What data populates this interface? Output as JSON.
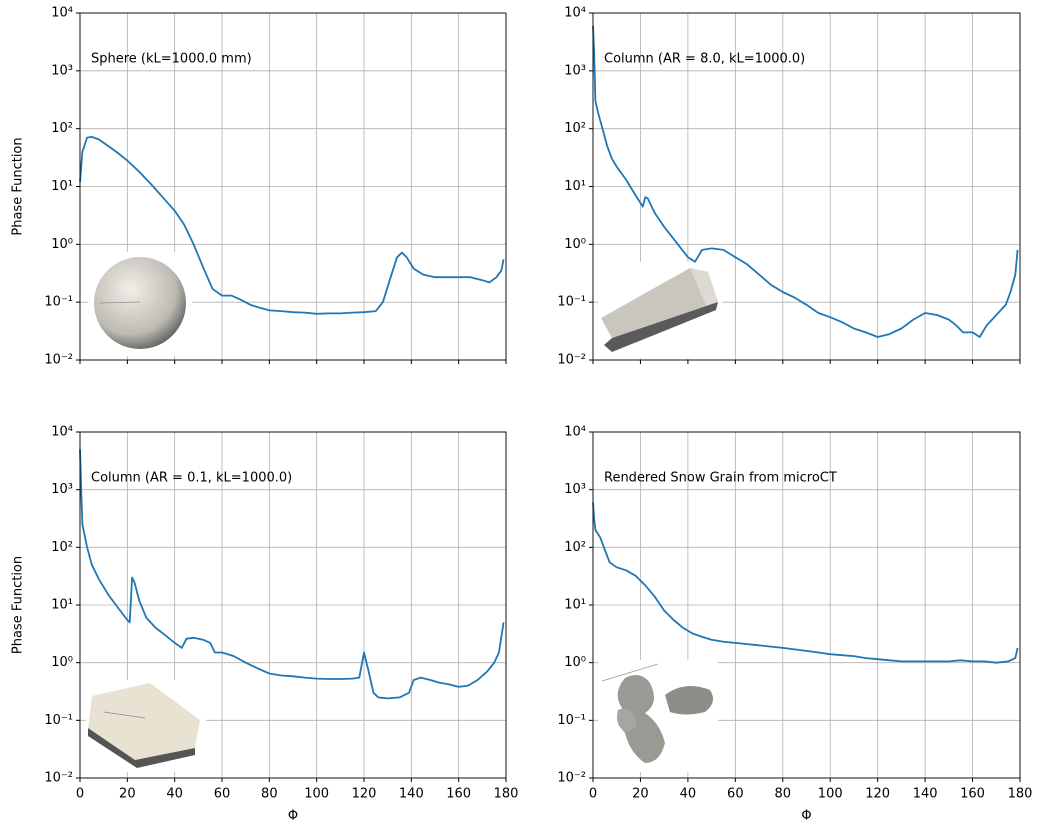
{
  "chart_data": [
    {
      "type": "line",
      "annotation": "Sphere (kL=1000.0 mm)",
      "ylabel": "Phase Function",
      "color": "#1f77b4",
      "x": [
        0,
        1,
        3,
        5,
        8,
        12,
        16,
        20,
        25,
        30,
        35,
        40,
        44,
        48,
        52,
        56,
        60,
        64,
        68,
        72,
        76,
        80,
        85,
        90,
        95,
        100,
        105,
        110,
        115,
        120,
        125,
        128,
        131,
        134,
        136,
        138,
        141,
        145,
        150,
        155,
        160,
        165,
        170,
        173,
        176,
        178,
        179
      ],
      "values": [
        12,
        40,
        70,
        72,
        65,
        50,
        38,
        28,
        18,
        11,
        6.5,
        3.8,
        2.2,
        1.0,
        0.4,
        0.17,
        0.13,
        0.13,
        0.11,
        0.09,
        0.08,
        0.072,
        0.07,
        0.067,
        0.066,
        0.063,
        0.064,
        0.064,
        0.066,
        0.067,
        0.07,
        0.1,
        0.25,
        0.6,
        0.72,
        0.6,
        0.38,
        0.3,
        0.27,
        0.27,
        0.27,
        0.27,
        0.24,
        0.22,
        0.27,
        0.35,
        0.55
      ],
      "xlim": [
        0,
        180
      ],
      "xticks": [
        0,
        20,
        40,
        60,
        80,
        100,
        120,
        140,
        160,
        180
      ],
      "xtick_labels": false,
      "ylim": [
        0.01,
        10000
      ],
      "log_y": true,
      "grid": true,
      "yticks": [
        {
          "value": 0.01,
          "label": "10⁻²"
        },
        {
          "value": 0.1,
          "label": "10⁻¹"
        },
        {
          "value": 1,
          "label": "10⁰"
        },
        {
          "value": 10,
          "label": "10¹"
        },
        {
          "value": 100,
          "label": "10²"
        },
        {
          "value": 1000,
          "label": "10³"
        },
        {
          "value": 10000,
          "label": "10⁴"
        }
      ]
    },
    {
      "type": "line",
      "annotation": "Column (AR = 8.0, kL=1000.0)",
      "color": "#1f77b4",
      "x": [
        0,
        0.5,
        1,
        2,
        4,
        6,
        8,
        10,
        14,
        18,
        21,
        22,
        23,
        26,
        30,
        35,
        40,
        43,
        46,
        50,
        55,
        60,
        65,
        70,
        75,
        80,
        85,
        90,
        95,
        100,
        105,
        110,
        115,
        120,
        125,
        130,
        135,
        140,
        145,
        150,
        153,
        156,
        160,
        163,
        166,
        170,
        174,
        176,
        178,
        179
      ],
      "values": [
        6000,
        2000,
        300,
        200,
        100,
        50,
        30,
        22,
        13,
        7,
        4.5,
        6.5,
        6.3,
        3.5,
        2,
        1.1,
        0.6,
        0.5,
        0.8,
        0.85,
        0.8,
        0.6,
        0.45,
        0.3,
        0.2,
        0.15,
        0.12,
        0.09,
        0.065,
        0.055,
        0.045,
        0.035,
        0.03,
        0.025,
        0.028,
        0.035,
        0.05,
        0.065,
        0.06,
        0.05,
        0.04,
        0.03,
        0.03,
        0.025,
        0.04,
        0.06,
        0.09,
        0.15,
        0.3,
        0.8
      ],
      "xlim": [
        0,
        180
      ],
      "xticks": [
        0,
        20,
        40,
        60,
        80,
        100,
        120,
        140,
        160,
        180
      ],
      "xtick_labels": false,
      "ylim": [
        0.01,
        10000
      ],
      "log_y": true,
      "grid": true,
      "yticks": [
        {
          "value": 0.01,
          "label": "10⁻²"
        },
        {
          "value": 0.1,
          "label": "10⁻¹"
        },
        {
          "value": 1,
          "label": "10⁰"
        },
        {
          "value": 10,
          "label": "10¹"
        },
        {
          "value": 100,
          "label": "10²"
        },
        {
          "value": 1000,
          "label": "10³"
        },
        {
          "value": 10000,
          "label": "10⁴"
        }
      ]
    },
    {
      "type": "line",
      "annotation": "Column (AR = 0.1, kL=1000.0)",
      "ylabel": "Phase Function",
      "xlabel": "Φ",
      "color": "#1f77b4",
      "x": [
        0,
        0.5,
        1,
        3,
        5,
        8,
        12,
        16,
        20,
        21,
        22,
        23,
        25,
        28,
        32,
        36,
        40,
        43,
        45,
        48,
        52,
        55,
        57,
        60,
        65,
        70,
        75,
        80,
        85,
        90,
        95,
        100,
        105,
        110,
        115,
        118,
        120,
        122,
        124,
        126,
        130,
        135,
        139,
        141,
        144,
        148,
        152,
        156,
        160,
        164,
        168,
        172,
        175,
        177,
        179
      ],
      "values": [
        5000,
        1000,
        250,
        100,
        50,
        28,
        15,
        9,
        5.5,
        5,
        30,
        25,
        12,
        6,
        4,
        3,
        2.2,
        1.8,
        2.6,
        2.7,
        2.5,
        2.2,
        1.5,
        1.5,
        1.3,
        1.0,
        0.8,
        0.65,
        0.6,
        0.58,
        0.55,
        0.53,
        0.52,
        0.52,
        0.53,
        0.55,
        1.5,
        0.7,
        0.3,
        0.25,
        0.24,
        0.25,
        0.3,
        0.5,
        0.55,
        0.5,
        0.45,
        0.42,
        0.38,
        0.4,
        0.5,
        0.7,
        1.0,
        1.5,
        5
      ],
      "xlim": [
        0,
        180
      ],
      "xticks": [
        0,
        20,
        40,
        60,
        80,
        100,
        120,
        140,
        160,
        180
      ],
      "xtick_labels": true,
      "ylim": [
        0.01,
        10000
      ],
      "log_y": true,
      "grid": true,
      "yticks": [
        {
          "value": 0.01,
          "label": "10⁻²"
        },
        {
          "value": 0.1,
          "label": "10⁻¹"
        },
        {
          "value": 1,
          "label": "10⁰"
        },
        {
          "value": 10,
          "label": "10¹"
        },
        {
          "value": 100,
          "label": "10²"
        },
        {
          "value": 1000,
          "label": "10³"
        },
        {
          "value": 10000,
          "label": "10⁴"
        }
      ]
    },
    {
      "type": "line",
      "annotation": "Rendered Snow Grain from microCT",
      "xlabel": "Φ",
      "color": "#1f77b4",
      "x": [
        0,
        0.5,
        1,
        3,
        5,
        7,
        10,
        14,
        18,
        22,
        26,
        30,
        34,
        38,
        42,
        46,
        50,
        55,
        60,
        65,
        70,
        75,
        80,
        85,
        90,
        95,
        100,
        105,
        110,
        115,
        120,
        125,
        130,
        135,
        140,
        145,
        150,
        155,
        160,
        165,
        170,
        175,
        178,
        179
      ],
      "values": [
        600,
        300,
        200,
        150,
        90,
        55,
        45,
        40,
        32,
        22,
        14,
        8,
        5.5,
        4.0,
        3.2,
        2.8,
        2.5,
        2.3,
        2.2,
        2.1,
        2.0,
        1.9,
        1.8,
        1.7,
        1.6,
        1.5,
        1.4,
        1.35,
        1.3,
        1.2,
        1.15,
        1.1,
        1.05,
        1.05,
        1.05,
        1.05,
        1.05,
        1.1,
        1.05,
        1.05,
        1.0,
        1.05,
        1.2,
        1.8
      ],
      "xlim": [
        0,
        180
      ],
      "xticks": [
        0,
        20,
        40,
        60,
        80,
        100,
        120,
        140,
        160,
        180
      ],
      "xtick_labels": true,
      "ylim": [
        0.01,
        10000
      ],
      "log_y": true,
      "grid": true,
      "yticks": [
        {
          "value": 0.01,
          "label": "10⁻²"
        },
        {
          "value": 0.1,
          "label": "10⁻¹"
        },
        {
          "value": 1,
          "label": "10⁰"
        },
        {
          "value": 10,
          "label": "10¹"
        },
        {
          "value": 100,
          "label": "10²"
        },
        {
          "value": 1000,
          "label": "10³"
        },
        {
          "value": 10000,
          "label": "10⁴"
        }
      ]
    }
  ]
}
